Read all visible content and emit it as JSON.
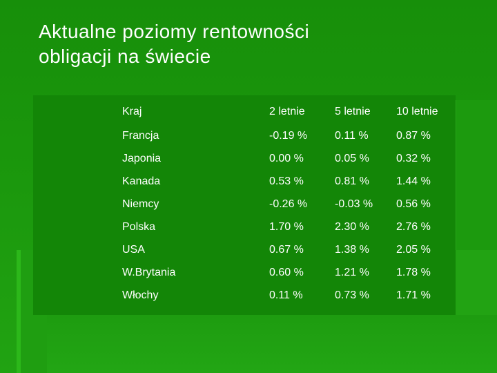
{
  "slide": {
    "title_line1": "Aktualne poziomy rentowności",
    "title_line2": "obligacji na świecie"
  },
  "table": {
    "headers": [
      "Kraj",
      "2 letnie",
      "5 letnie",
      "10 letnie"
    ],
    "rows": [
      [
        "Francja",
        "-0.19 %",
        "0.11 %",
        "0.87 %"
      ],
      [
        "Japonia",
        "0.00 %",
        "0.05 %",
        "0.32 %"
      ],
      [
        "Kanada",
        "0.53 %",
        "0.81 %",
        "1.44 %"
      ],
      [
        "Niemcy",
        "-0.26 %",
        "-0.03 %",
        "0.56 %"
      ],
      [
        "Polska",
        "1.70 %",
        "2.30 %",
        "2.76 %"
      ],
      [
        "USA",
        "0.67 %",
        "1.38 %",
        "2.05 %"
      ],
      [
        "W.Brytania",
        "0.60 %",
        "1.21 %",
        "1.78 %"
      ],
      [
        "Włochy",
        "0.11 %",
        "0.73 %",
        "1.71 %"
      ]
    ]
  },
  "colors": {
    "background": "#1a960c",
    "table_panel": "#138607",
    "text": "#ffffff"
  }
}
